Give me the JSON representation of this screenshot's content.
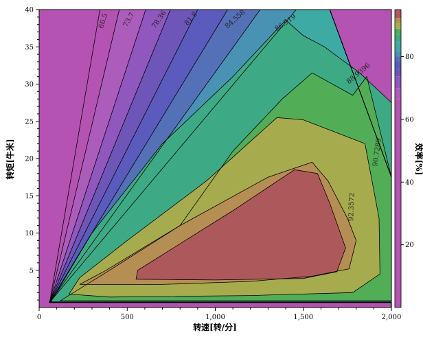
{
  "chart_data": {
    "type": "heatmap",
    "subtype": "contour",
    "title": "",
    "xlabel": "转速[转/分]",
    "ylabel": "转矩[牛米]",
    "colorbar_label": "效率[%]",
    "xlim": [
      0,
      2000
    ],
    "ylim": [
      0,
      40
    ],
    "colorbar_range": [
      0,
      95
    ],
    "x_ticks": [
      0,
      500,
      1000,
      1500,
      2000
    ],
    "x_tick_labels": [
      "0",
      "500",
      "1,000",
      "1,500",
      "2,000"
    ],
    "y_ticks": [
      5,
      10,
      15,
      20,
      25,
      30,
      35,
      40
    ],
    "y_tick_labels": [
      "5",
      "10",
      "15",
      "20",
      "25",
      "30",
      "35",
      "40"
    ],
    "colorbar_ticks": [
      20,
      40,
      60,
      80
    ],
    "colorbar_tick_labels": [
      "20",
      "40",
      "60",
      "80"
    ],
    "contour_labels": [
      {
        "text": "66.5",
        "value": 66.5,
        "x": 375,
        "y": 38.4,
        "rotation": -72
      },
      {
        "text": "73.7",
        "value": 73.7,
        "x": 520,
        "y": 38.5,
        "rotation": -60
      },
      {
        "text": "78.36",
        "value": 78.36,
        "x": 690,
        "y": 38.5,
        "rotation": -55
      },
      {
        "text": "81.8",
        "value": 81.8,
        "x": 870,
        "y": 38.6,
        "rotation": -48
      },
      {
        "text": "84.558",
        "value": 84.558,
        "x": 1120,
        "y": 38.5,
        "rotation": -42
      },
      {
        "text": "86.919",
        "value": 86.919,
        "x": 1405,
        "y": 38.0,
        "rotation": -35
      },
      {
        "text": "88.9396",
        "value": 88.9396,
        "x": 1820,
        "y": 31.2,
        "rotation": -40
      },
      {
        "text": "90.7289",
        "value": 90.7289,
        "x": 1930,
        "y": 20.8,
        "rotation": -82
      },
      {
        "text": "92.3572",
        "value": 92.3572,
        "x": 1785,
        "y": 13.5,
        "rotation": -88
      }
    ],
    "colors": {
      "background": "#efefef",
      "level_colors": [
        "#b453b2",
        "#ac5cbb",
        "#9057be",
        "#6e55b8",
        "#5a5bbd",
        "#5470b6",
        "#4a92b3",
        "#3eaaa4",
        "#3eaa85",
        "#52ad57",
        "#a6ab4e",
        "#b58e53",
        "#ad595b"
      ]
    }
  }
}
